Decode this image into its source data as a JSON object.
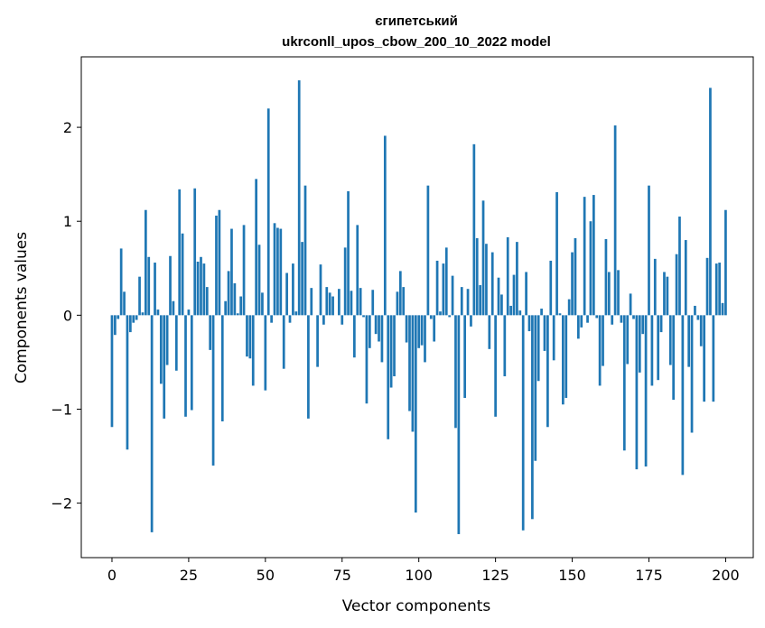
{
  "chart_data": {
    "type": "bar",
    "title_line1": "єгипетський",
    "title_line2": "ukrconll_upos_cbow_200_10_2022 model",
    "xlabel": "Vector components",
    "ylabel": "Components values",
    "xlim": [
      -10,
      209
    ],
    "ylim": [
      -2.58,
      2.75
    ],
    "xticks": [
      0,
      25,
      50,
      75,
      100,
      125,
      150,
      175,
      200
    ],
    "xtick_labels": [
      "0",
      "25",
      "50",
      "75",
      "100",
      "125",
      "150",
      "175",
      "200"
    ],
    "yticks": [
      -2,
      -1,
      0,
      1,
      2
    ],
    "ytick_labels": [
      "−2",
      "−1",
      "0",
      "1",
      "2"
    ],
    "bar_color": "#1f77b4",
    "values": [
      -1.19,
      -0.21,
      -0.04,
      0.71,
      0.25,
      -1.43,
      -0.18,
      -0.08,
      -0.05,
      0.41,
      0.03,
      1.12,
      0.62,
      -2.31,
      0.56,
      0.06,
      -0.73,
      -1.1,
      -0.53,
      0.63,
      0.15,
      -0.59,
      1.34,
      0.87,
      -1.08,
      0.06,
      -1.01,
      1.35,
      0.57,
      0.62,
      0.55,
      0.3,
      -0.37,
      -1.6,
      1.06,
      1.12,
      -1.13,
      0.15,
      0.47,
      0.92,
      0.34,
      0.02,
      0.2,
      0.96,
      -0.44,
      -0.46,
      -0.75,
      1.45,
      0.75,
      0.24,
      -0.8,
      2.2,
      -0.08,
      0.98,
      0.93,
      0.92,
      -0.57,
      0.45,
      -0.08,
      0.55,
      0.04,
      2.5,
      0.78,
      1.38,
      -1.1,
      0.29,
      0.0,
      -0.55,
      0.54,
      -0.1,
      0.3,
      0.24,
      0.2,
      0.0,
      0.28,
      -0.1,
      0.72,
      1.32,
      0.26,
      -0.45,
      0.96,
      0.29,
      -0.02,
      -0.94,
      -0.35,
      0.27,
      -0.2,
      -0.28,
      -0.5,
      1.91,
      -1.32,
      -0.77,
      -0.65,
      0.25,
      0.47,
      0.3,
      -0.29,
      -1.02,
      -1.24,
      -2.1,
      -0.35,
      -0.32,
      -0.5,
      1.38,
      -0.04,
      -0.28,
      0.58,
      0.04,
      0.55,
      0.72,
      -0.02,
      0.42,
      -1.2,
      -2.33,
      0.3,
      -0.88,
      0.28,
      -0.12,
      1.82,
      0.82,
      0.32,
      1.22,
      0.76,
      -0.36,
      0.67,
      -1.08,
      0.4,
      0.22,
      -0.65,
      0.83,
      0.1,
      0.43,
      0.78,
      0.05,
      -2.29,
      0.46,
      -0.17,
      -2.17,
      -1.55,
      -0.7,
      0.07,
      -0.38,
      -1.19,
      0.58,
      -0.48,
      1.31,
      0.02,
      -0.95,
      -0.88,
      0.17,
      0.67,
      0.82,
      -0.25,
      -0.13,
      1.26,
      -0.08,
      1.0,
      1.28,
      -0.03,
      -0.75,
      -0.54,
      0.81,
      0.46,
      -0.1,
      2.02,
      0.48,
      -0.08,
      -1.44,
      -0.52,
      0.23,
      -0.04,
      -1.64,
      -0.61,
      -0.2,
      -1.61,
      1.38,
      -0.75,
      0.6,
      -0.69,
      -0.18,
      0.46,
      0.41,
      -0.53,
      -0.9,
      0.65,
      1.05,
      -1.7,
      0.8,
      -0.55,
      -1.25,
      0.1,
      -0.05,
      -0.33,
      -0.92,
      0.61,
      2.42,
      -0.92,
      0.55,
      0.56,
      0.13,
      1.12
    ]
  }
}
